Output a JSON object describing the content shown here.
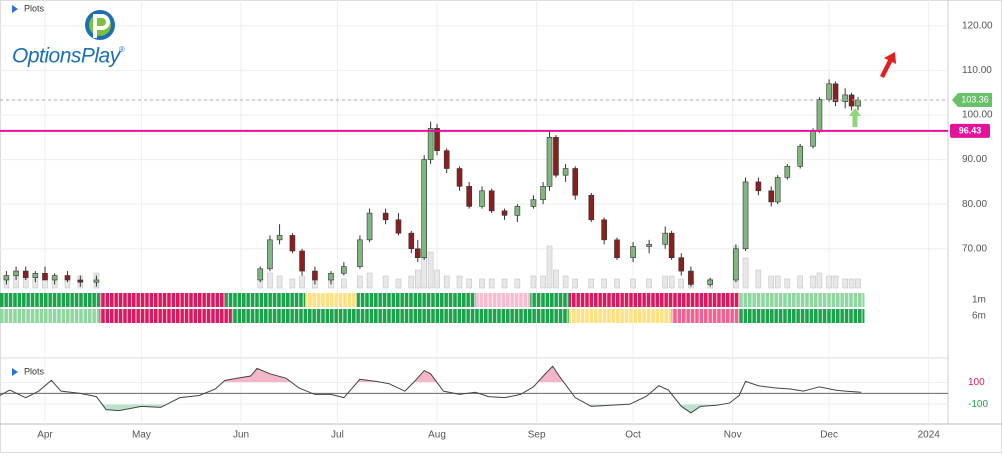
{
  "chart_data": {
    "type": "candlestick",
    "logo_text": "OptionsPlay",
    "logo_mark": "®",
    "panel_label": "Plots",
    "xlim": [
      77,
      372
    ],
    "xticks": [
      {
        "value": 91,
        "label": "Apr"
      },
      {
        "value": 121,
        "label": "May"
      },
      {
        "value": 152,
        "label": "Jun"
      },
      {
        "value": 182,
        "label": "Jul"
      },
      {
        "value": 213,
        "label": "Aug"
      },
      {
        "value": 244,
        "label": "Sep"
      },
      {
        "value": 274,
        "label": "Oct"
      },
      {
        "value": 305,
        "label": "Nov"
      },
      {
        "value": 335,
        "label": "Dec"
      },
      {
        "value": 366,
        "label": "2024"
      }
    ],
    "ylim": [
      61.2,
      124.9
    ],
    "yticks": [
      {
        "value": 70,
        "label": "70.00"
      },
      {
        "value": 80,
        "label": "80.00"
      },
      {
        "value": 90,
        "label": "90.00"
      },
      {
        "value": 100,
        "label": "100.00"
      },
      {
        "value": 110,
        "label": "110.00"
      },
      {
        "value": 120,
        "label": "120.00"
      }
    ],
    "grid": true,
    "up_color": "#7fb77e",
    "down_color": "#8b1f1f",
    "last_price": 103.36,
    "last_price_color": "#6abf69",
    "level": 96.43,
    "level_color": "#e6119a",
    "x": [
      79,
      82,
      85,
      88,
      91,
      94,
      98,
      102,
      107,
      158,
      161,
      164,
      168,
      171,
      175,
      180,
      184,
      189,
      192,
      197,
      201,
      205,
      207,
      209,
      211,
      213,
      216,
      220,
      223,
      227,
      230,
      234,
      238,
      243,
      246,
      248,
      250,
      253,
      256,
      261,
      265,
      269,
      274,
      279,
      284,
      286,
      289,
      292,
      298,
      306,
      309,
      313,
      317,
      319,
      322,
      326,
      330,
      332,
      335,
      337,
      340,
      342,
      344
    ],
    "open": [
      63,
      64,
      65,
      63.5,
      64.5,
      63,
      64,
      63,
      62.5,
      63,
      65.5,
      72,
      73,
      69.5,
      65,
      63,
      64.5,
      66,
      72,
      78,
      76.5,
      73.5,
      70,
      68,
      90,
      97,
      92,
      88,
      84,
      79.5,
      83,
      78.5,
      77.5,
      79.5,
      81,
      84,
      95,
      86.5,
      88,
      82,
      76.5,
      72,
      68,
      70.5,
      71,
      73.5,
      68,
      65,
      62,
      63,
      70,
      85,
      83,
      80.5,
      86,
      88.5,
      93,
      96.5,
      103.5,
      107,
      103,
      104.5,
      102
    ],
    "high": [
      65,
      66,
      66,
      65,
      66,
      64.5,
      65,
      64,
      64,
      66,
      73,
      75.5,
      73.5,
      70,
      66,
      65,
      67,
      73,
      79,
      79,
      78,
      74,
      72,
      91,
      98.5,
      98,
      92.5,
      88.5,
      85,
      84,
      83.5,
      79,
      80,
      82,
      85,
      96.5,
      95.5,
      89,
      88.5,
      82.5,
      77,
      72.5,
      71.5,
      72,
      75,
      74,
      69,
      66,
      63.5,
      71,
      86,
      86,
      84,
      86.5,
      89,
      93.5,
      97,
      104,
      108,
      107.5,
      106,
      105,
      104
    ],
    "low": [
      62,
      63,
      63,
      62.5,
      63,
      62,
      62.5,
      61.5,
      61.5,
      62.5,
      65,
      71,
      69,
      64,
      62,
      62,
      64,
      65.5,
      71.5,
      75.5,
      73,
      69,
      67,
      67.5,
      89,
      91,
      87,
      83,
      79,
      79,
      78,
      76.5,
      76,
      79,
      80,
      83,
      86,
      85,
      81,
      76,
      71,
      67.5,
      67,
      69,
      70,
      67.5,
      64,
      61.5,
      61.5,
      62.5,
      69.5,
      82,
      79.5,
      80,
      85.5,
      88,
      92.5,
      96,
      103,
      102,
      101.5,
      101,
      101
    ],
    "close": [
      64,
      65,
      63.5,
      64.5,
      63,
      64,
      63,
      62.5,
      63,
      65.5,
      72,
      73,
      69.5,
      65,
      63,
      64.5,
      66,
      72,
      78,
      76.5,
      73.5,
      70,
      68,
      90,
      97,
      92,
      88,
      84,
      79.5,
      83,
      78.5,
      77.5,
      79.5,
      81,
      84,
      95,
      86.5,
      88,
      82,
      76.5,
      72,
      68,
      70.5,
      71,
      73.5,
      68,
      65,
      62,
      63,
      70,
      85,
      83,
      80.5,
      86,
      88.5,
      93,
      96.5,
      103.5,
      107,
      103,
      104.5,
      102,
      103.36
    ],
    "volume": {
      "color": "#e8e8e8",
      "ylim": [
        0,
        10
      ],
      "values": [
        1.5,
        2,
        1.5,
        1.5,
        2,
        1.5,
        1.5,
        2,
        2.5,
        1.5,
        2.5,
        2,
        1.5,
        2,
        1.5,
        1.5,
        1.5,
        2,
        2.5,
        2,
        1.5,
        2,
        3,
        8,
        6,
        3,
        2,
        2,
        1.5,
        1.5,
        1.5,
        1.5,
        1.5,
        2,
        2,
        7,
        3,
        2,
        1.5,
        1.5,
        1.5,
        1.5,
        1.5,
        1.5,
        2,
        2,
        1.5,
        2,
        1.5,
        7,
        5,
        3,
        2,
        2,
        1.5,
        2,
        2,
        2.5,
        2,
        2,
        1.5,
        1.5,
        1.5
      ]
    },
    "strips": [
      {
        "name": "1m",
        "segments": [
          {
            "from": 77,
            "to": 108,
            "color": "#1aa34a"
          },
          {
            "from": 108,
            "to": 147,
            "color": "#d81b60"
          },
          {
            "from": 147,
            "to": 172,
            "color": "#1aa34a"
          },
          {
            "from": 172,
            "to": 188,
            "color": "#ffe082"
          },
          {
            "from": 188,
            "to": 225,
            "color": "#1aa34a"
          },
          {
            "from": 225,
            "to": 242,
            "color": "#f8bbd0"
          },
          {
            "from": 242,
            "to": 254,
            "color": "#1aa34a"
          },
          {
            "from": 254,
            "to": 307,
            "color": "#d81b60"
          },
          {
            "from": 307,
            "to": 346,
            "color": "#8fd6a0"
          }
        ]
      },
      {
        "name": "6m",
        "segments": [
          {
            "from": 77,
            "to": 108,
            "color": "#8fd6a0"
          },
          {
            "from": 108,
            "to": 149,
            "color": "#d81b60"
          },
          {
            "from": 149,
            "to": 254,
            "color": "#1aa34a"
          },
          {
            "from": 254,
            "to": 286,
            "color": "#ffe082"
          },
          {
            "from": 286,
            "to": 307,
            "color": "#f06292"
          },
          {
            "from": 307,
            "to": 346,
            "color": "#1aa34a"
          }
        ]
      }
    ],
    "oscillator": {
      "ylim": [
        -283,
        326
      ],
      "yticks": [
        100,
        -100
      ],
      "baseline": 0,
      "color": "#444444",
      "high_color": "#f4b6c8",
      "low_color": "#b9e4c9",
      "x": [
        77,
        80,
        85,
        89,
        93,
        96,
        102,
        107,
        110,
        114,
        121,
        127,
        133,
        139,
        144,
        147,
        151,
        155,
        157,
        161,
        166,
        170,
        175,
        180,
        184,
        189,
        194,
        198,
        203,
        206,
        209,
        211,
        215,
        220,
        225,
        229,
        234,
        239,
        243,
        247,
        249,
        251,
        256,
        261,
        267,
        273,
        278,
        282,
        285,
        289,
        292,
        295,
        300,
        304,
        307,
        309,
        313,
        318,
        323,
        327,
        332,
        337,
        340,
        345
      ],
      "values": [
        -20,
        30,
        -40,
        20,
        120,
        20,
        0,
        -30,
        -150,
        -160,
        -120,
        -130,
        -40,
        -20,
        40,
        120,
        140,
        160,
        230,
        180,
        140,
        50,
        -10,
        -10,
        -40,
        130,
        110,
        90,
        20,
        110,
        210,
        180,
        20,
        -10,
        10,
        -30,
        -40,
        -10,
        60,
        190,
        250,
        160,
        -40,
        -120,
        -110,
        -100,
        -30,
        70,
        30,
        -120,
        -180,
        -120,
        -110,
        -90,
        -20,
        110,
        70,
        50,
        40,
        20,
        60,
        30,
        20,
        10
      ]
    }
  }
}
